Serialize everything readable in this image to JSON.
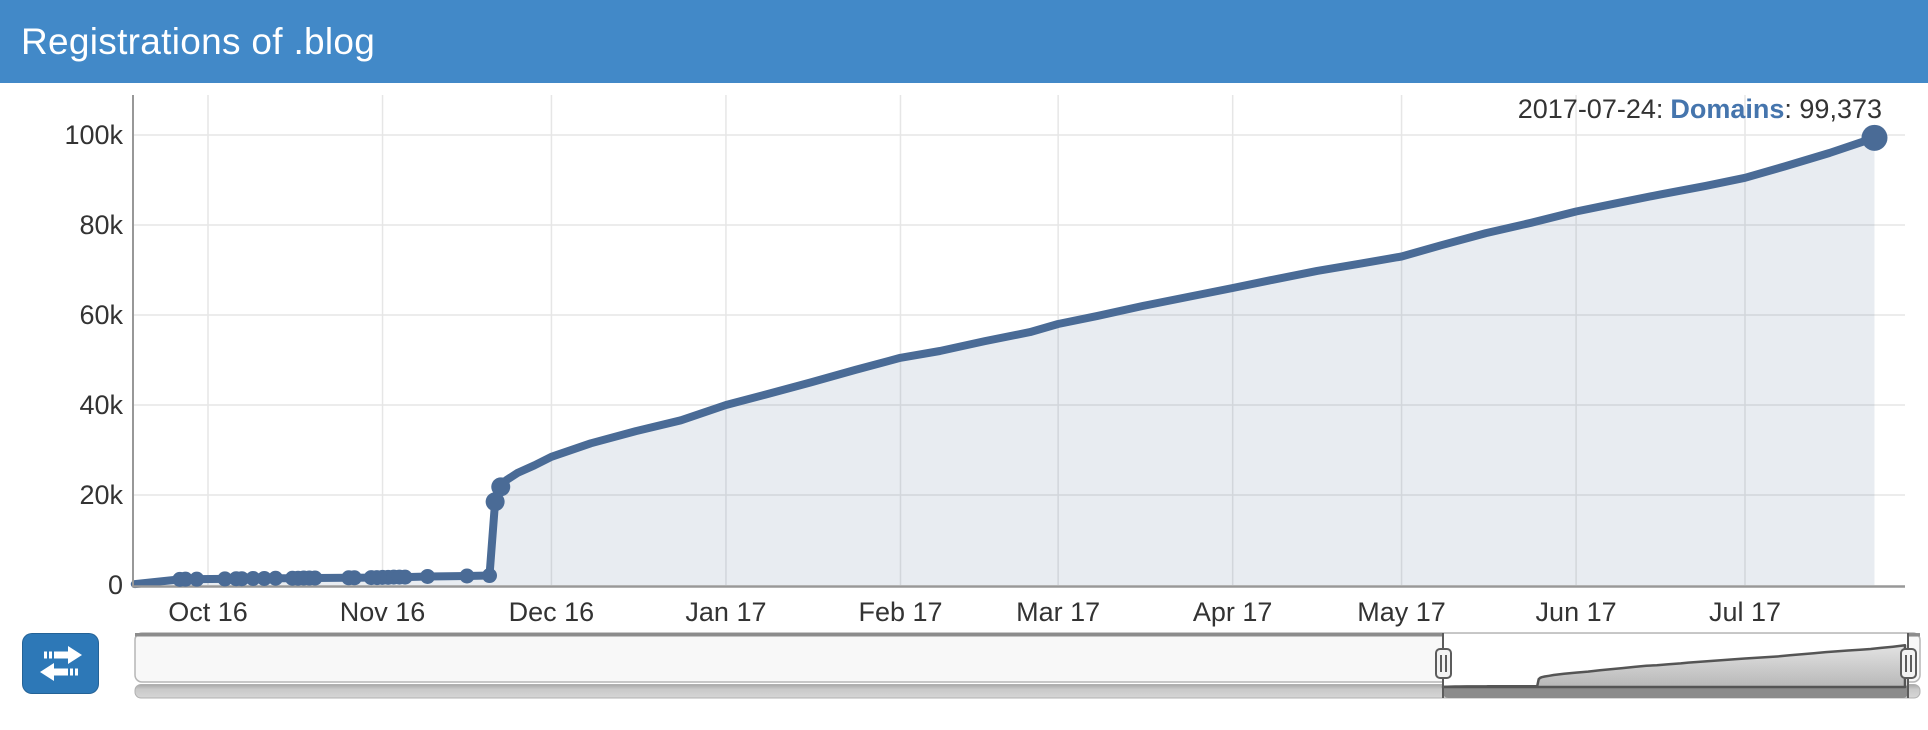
{
  "header": {
    "title": "Registrations of .blog",
    "background_color": "#4289c8"
  },
  "tooltip": {
    "date_label": "2017-07-24:",
    "series_label": "Domains",
    "value_label": ": 99,373",
    "series_color": "#4575ad",
    "text_color": "#333333"
  },
  "chart_data": {
    "type": "area",
    "title": "Registrations of .blog",
    "series": [
      {
        "name": "Domains"
      }
    ],
    "x_type": "datetime",
    "xlabel": "",
    "ylabel": "",
    "ylim": [
      0,
      109000
    ],
    "grid": true,
    "legend_position": "none",
    "y_ticks": [
      {
        "value": 0,
        "label": "0"
      },
      {
        "value": 20000,
        "label": "20k"
      },
      {
        "value": 40000,
        "label": "40k"
      },
      {
        "value": 60000,
        "label": "60k"
      },
      {
        "value": 80000,
        "label": "80k"
      },
      {
        "value": 100000,
        "label": "100k"
      }
    ],
    "x_ticks": [
      {
        "date": "2016-10-01",
        "label": "Oct 16"
      },
      {
        "date": "2016-11-01",
        "label": "Nov 16"
      },
      {
        "date": "2016-12-01",
        "label": "Dec 16"
      },
      {
        "date": "2017-01-01",
        "label": "Jan 17"
      },
      {
        "date": "2017-02-01",
        "label": "Feb 17"
      },
      {
        "date": "2017-03-01",
        "label": "Mar 17"
      },
      {
        "date": "2017-04-01",
        "label": "Apr 17"
      },
      {
        "date": "2017-05-01",
        "label": "May 17"
      },
      {
        "date": "2017-06-01",
        "label": "Jun 17"
      },
      {
        "date": "2017-07-01",
        "label": "Jul 17"
      }
    ],
    "points": [
      [
        "2016-09-18",
        200
      ],
      [
        "2016-09-26",
        1250
      ],
      [
        "2016-09-27",
        1300
      ],
      [
        "2016-09-29",
        1300
      ],
      [
        "2016-10-04",
        1350
      ],
      [
        "2016-10-06",
        1400
      ],
      [
        "2016-10-07",
        1400
      ],
      [
        "2016-10-09",
        1450
      ],
      [
        "2016-10-11",
        1450
      ],
      [
        "2016-10-13",
        1500
      ],
      [
        "2016-10-16",
        1500
      ],
      [
        "2016-10-17",
        1500
      ],
      [
        "2016-10-18",
        1550
      ],
      [
        "2016-10-19",
        1550
      ],
      [
        "2016-10-20",
        1550
      ],
      [
        "2016-10-26",
        1600
      ],
      [
        "2016-10-27",
        1600
      ],
      [
        "2016-10-30",
        1650
      ],
      [
        "2016-10-31",
        1650
      ],
      [
        "2016-11-01",
        1700
      ],
      [
        "2016-11-02",
        1700
      ],
      [
        "2016-11-03",
        1750
      ],
      [
        "2016-11-04",
        1750
      ],
      [
        "2016-11-05",
        1750
      ],
      [
        "2016-11-09",
        1900
      ],
      [
        "2016-11-16",
        2000
      ],
      [
        "2016-11-20",
        2100
      ],
      [
        "2016-11-21",
        18500
      ],
      [
        "2016-11-22",
        21800
      ],
      [
        "2016-11-23",
        23300
      ],
      [
        "2016-11-25",
        24900
      ],
      [
        "2016-11-28",
        26600
      ],
      [
        "2016-12-01",
        28500
      ],
      [
        "2016-12-08",
        31500
      ],
      [
        "2016-12-16",
        34200
      ],
      [
        "2016-12-24",
        36600
      ],
      [
        "2017-01-01",
        40000
      ],
      [
        "2017-01-08",
        42300
      ],
      [
        "2017-01-16",
        45000
      ],
      [
        "2017-01-24",
        47800
      ],
      [
        "2017-02-01",
        50500
      ],
      [
        "2017-02-08",
        52000
      ],
      [
        "2017-02-16",
        54200
      ],
      [
        "2017-02-24",
        56200
      ],
      [
        "2017-03-01",
        58000
      ],
      [
        "2017-03-08",
        59800
      ],
      [
        "2017-03-16",
        62000
      ],
      [
        "2017-03-24",
        64000
      ],
      [
        "2017-04-01",
        66000
      ],
      [
        "2017-04-08",
        67800
      ],
      [
        "2017-04-16",
        69800
      ],
      [
        "2017-04-24",
        71500
      ],
      [
        "2017-05-01",
        73000
      ],
      [
        "2017-05-08",
        75500
      ],
      [
        "2017-05-16",
        78200
      ],
      [
        "2017-05-24",
        80500
      ],
      [
        "2017-06-01",
        83000
      ],
      [
        "2017-06-08",
        84800
      ],
      [
        "2017-06-16",
        86800
      ],
      [
        "2017-06-24",
        88700
      ],
      [
        "2017-07-01",
        90500
      ],
      [
        "2017-07-08",
        93000
      ],
      [
        "2017-07-16",
        96000
      ],
      [
        "2017-07-24",
        99373
      ]
    ],
    "last_point": {
      "date": "2017-07-24",
      "value": 99373,
      "value_formatted": "99,373"
    },
    "colors": {
      "line": "#4a6b96",
      "area_fill_rgba": "rgba(74,107,150,0.13)",
      "gridline": "#e6e6e6",
      "axis_line": "#989898",
      "axis_label": "#333333"
    }
  },
  "navigator": {
    "button": {
      "icon": "exchange-arrows-icon",
      "background_color": "#2d78b7",
      "icon_color": "#ffffff"
    },
    "colors": {
      "track_fill": "#f8f8f8",
      "track_border": "#b6b6b6",
      "track_top_border": "#8c8c8c",
      "selection_border": "#5c5c5c",
      "mini_line": "#555555",
      "mini_fill_top": "#e2e2e2",
      "mini_fill_bottom": "#b8b8b8",
      "scrollbar_track": "#c9c9c9",
      "scrollbar_thumb": "#8b8b8b",
      "handle_fill": "#f3f3f3",
      "handle_border": "#5c5c5c"
    }
  }
}
